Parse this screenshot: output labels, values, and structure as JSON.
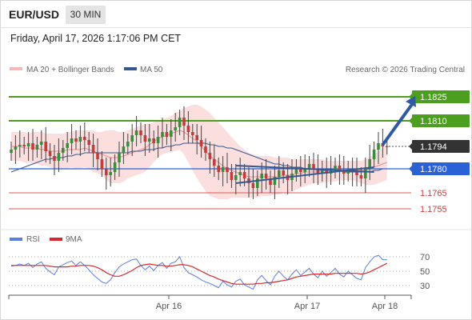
{
  "header": {
    "symbol": "EUR/USD",
    "timeframe": "30 MIN",
    "datetime": "Friday, April 17, 2026 1:17:06 PM CET"
  },
  "colors": {
    "bollinger_band": "#f7b8b8",
    "ma20": "#e8908e",
    "ma50": "#34588f",
    "resistance": "#4c9e1e",
    "support": "#e25757",
    "pivot": "#2a62d6",
    "candle_up": "#3a8d3a",
    "candle_down": "#c43b3b",
    "rsi": "#5b7ee0",
    "rsi_ma": "#d62a2a"
  },
  "chart_data": [
    {
      "type": "candlestick",
      "legend": [
        "MA 20 + Bollinger Bands",
        "MA 50"
      ],
      "watermark": "Research © 2026 Trading Central",
      "ylim": [
        1.1749,
        1.1832
      ],
      "levels": [
        {
          "value": 1.1825,
          "label": "1.1825",
          "kind": "resistance"
        },
        {
          "value": 1.181,
          "label": "1.1810",
          "kind": "resistance"
        },
        {
          "value": 1.1794,
          "label": "1.1794",
          "kind": "last"
        },
        {
          "value": 1.178,
          "label": "1.1780",
          "kind": "pivot"
        },
        {
          "value": 1.1765,
          "label": "1.1765",
          "kind": "support"
        },
        {
          "value": 1.1755,
          "label": "1.1755",
          "kind": "support"
        }
      ],
      "close": [
        1.1792,
        1.1794,
        1.1795,
        1.1794,
        1.1796,
        1.1792,
        1.1795,
        1.1797,
        1.1791,
        1.1788,
        1.1785,
        1.179,
        1.1793,
        1.1796,
        1.1799,
        1.1797,
        1.18,
        1.1798,
        1.1795,
        1.179,
        1.1786,
        1.178,
        1.1776,
        1.1778,
        1.1784,
        1.179,
        1.1794,
        1.1797,
        1.1801,
        1.1804,
        1.1801,
        1.1797,
        1.1799,
        1.1796,
        1.18,
        1.1803,
        1.18,
        1.1804,
        1.1806,
        1.1812,
        1.1807,
        1.1803,
        1.1801,
        1.1798,
        1.1794,
        1.179,
        1.1786,
        1.1782,
        1.1778,
        1.1781,
        1.1778,
        1.1773,
        1.1776,
        1.1778,
        1.1774,
        1.1771,
        1.1768,
        1.1774,
        1.1777,
        1.1774,
        1.177,
        1.1775,
        1.1779,
        1.1776,
        1.1773,
        1.1777,
        1.1781,
        1.1778,
        1.178,
        1.1783,
        1.178,
        1.1777,
        1.178,
        1.1777,
        1.1779,
        1.1782,
        1.1779,
        1.1777,
        1.178,
        1.1778,
        1.1776,
        1.1774,
        1.178,
        1.1786,
        1.1792,
        1.1796,
        1.1794,
        1.1794
      ],
      "ma20": [
        1.1794,
        1.1794,
        1.1794,
        1.1793,
        1.1793,
        1.1793,
        1.1793,
        1.1792,
        1.1792,
        1.1791,
        1.1791,
        1.1791,
        1.1791,
        1.1792,
        1.1792,
        1.1792,
        1.1792,
        1.1793,
        1.1792,
        1.1791,
        1.179,
        1.1789,
        1.1788,
        1.1787,
        1.1787,
        1.1787,
        1.1788,
        1.1789,
        1.179,
        1.1791,
        1.1792,
        1.1793,
        1.1795,
        1.1797,
        1.1799,
        1.18,
        1.1801,
        1.1802,
        1.1803,
        1.1804,
        1.1803,
        1.1801,
        1.1799,
        1.1797,
        1.1794,
        1.1791,
        1.1788,
        1.1786,
        1.1784,
        1.1782,
        1.178,
        1.1779,
        1.1778,
        1.1777,
        1.1776,
        1.1775,
        1.1775,
        1.1775,
        1.1775,
        1.1775,
        1.1775,
        1.1775,
        1.1775,
        1.1776,
        1.1776,
        1.1776,
        1.1777,
        1.1777,
        1.1778,
        1.1778,
        1.1778,
        1.1778,
        1.1779,
        1.1779,
        1.1779,
        1.1779,
        1.1779,
        1.1779,
        1.1779,
        1.1779,
        1.1779,
        1.1779,
        1.1779,
        1.178,
        1.1781,
        1.1782,
        1.1783,
        1.1784
      ],
      "bb_upper": [
        1.1803,
        1.1803,
        1.1803,
        1.1803,
        1.1802,
        1.1803,
        1.1803,
        1.1803,
        1.1802,
        1.1802,
        1.1802,
        1.1802,
        1.1802,
        1.1803,
        1.1803,
        1.1804,
        1.1804,
        1.1804,
        1.1804,
        1.1804,
        1.1803,
        1.1803,
        1.1804,
        1.1804,
        1.1804,
        1.1803,
        1.1803,
        1.1804,
        1.1805,
        1.1806,
        1.1807,
        1.1808,
        1.1808,
        1.1809,
        1.181,
        1.1811,
        1.1812,
        1.1813,
        1.1815,
        1.1816,
        1.1818,
        1.1819,
        1.182,
        1.182,
        1.1819,
        1.1817,
        1.1815,
        1.1812,
        1.1809,
        1.1806,
        1.1803,
        1.18,
        1.1797,
        1.1794,
        1.1792,
        1.179,
        1.1789,
        1.1788,
        1.1788,
        1.1788,
        1.1788,
        1.1787,
        1.1787,
        1.1787,
        1.1787,
        1.1786,
        1.1786,
        1.1786,
        1.1786,
        1.1786,
        1.1786,
        1.1786,
        1.1786,
        1.1785,
        1.1785,
        1.1785,
        1.1785,
        1.1785,
        1.1785,
        1.1785,
        1.1785,
        1.1785,
        1.1786,
        1.1787,
        1.1789,
        1.1791,
        1.1793,
        1.1795
      ],
      "bb_lower": [
        1.1785,
        1.1785,
        1.1785,
        1.1784,
        1.1784,
        1.1783,
        1.1783,
        1.1782,
        1.1782,
        1.1781,
        1.178,
        1.178,
        1.178,
        1.178,
        1.1781,
        1.178,
        1.178,
        1.1781,
        1.178,
        1.1778,
        1.1777,
        1.1776,
        1.1773,
        1.1771,
        1.1771,
        1.1771,
        1.1772,
        1.1774,
        1.1775,
        1.1776,
        1.1777,
        1.1778,
        1.1781,
        1.1784,
        1.1787,
        1.1789,
        1.179,
        1.1791,
        1.1791,
        1.1792,
        1.1789,
        1.1784,
        1.1779,
        1.1774,
        1.177,
        1.1766,
        1.1763,
        1.1762,
        1.1761,
        1.1761,
        1.1761,
        1.1762,
        1.1762,
        1.1762,
        1.1762,
        1.1762,
        1.1762,
        1.1762,
        1.1763,
        1.1763,
        1.1763,
        1.1764,
        1.1764,
        1.1765,
        1.1765,
        1.1766,
        1.1767,
        1.1768,
        1.1769,
        1.177,
        1.1771,
        1.1771,
        1.1771,
        1.1772,
        1.1772,
        1.1772,
        1.1773,
        1.1773,
        1.1773,
        1.1773,
        1.1772,
        1.1771,
        1.177,
        1.177,
        1.177,
        1.1771,
        1.1772,
        1.1773
      ],
      "ma50": [
        1.1778,
        1.1779,
        1.178,
        1.1781,
        1.1782,
        1.1783,
        1.1784,
        1.1785,
        1.1786,
        1.1786,
        1.1787,
        1.1787,
        1.1787,
        1.1788,
        1.1788,
        1.1789,
        1.1789,
        1.179,
        1.179,
        1.179,
        1.179,
        1.179,
        1.179,
        1.179,
        1.179,
        1.179,
        1.179,
        1.179,
        1.1791,
        1.1791,
        1.1791,
        1.1792,
        1.1792,
        1.1792,
        1.1793,
        1.1793,
        1.1794,
        1.1794,
        1.1795,
        1.1795,
        1.1796,
        1.1796,
        1.1796,
        1.1796,
        1.1796,
        1.1796,
        1.1795,
        1.1795,
        1.1794,
        1.1794,
        1.1793,
        1.1793,
        1.1792,
        1.1791,
        1.179,
        1.1789,
        1.1788,
        1.1787,
        1.1786,
        1.1785,
        1.1784,
        1.1783,
        1.1783,
        1.1782,
        1.1782,
        1.1781,
        1.1781,
        1.1781,
        1.178,
        1.178,
        1.178,
        1.178,
        1.1779,
        1.1779,
        1.1779,
        1.1779,
        1.1779,
        1.1778,
        1.1778,
        1.1778,
        1.1778,
        1.1778,
        1.1778,
        1.1778,
        1.1779,
        1.1779,
        1.178,
        1.178
      ],
      "trendlines": [
        {
          "from": [
            52,
            1.1771
          ],
          "to": [
            84,
            1.1781
          ],
          "kind": "support"
        },
        {
          "from": [
            52,
            1.1782
          ],
          "to": [
            84,
            1.1778
          ],
          "kind": "resistance"
        }
      ],
      "arrow": {
        "from": [
          86,
          1.1795
        ],
        "to": [
          90,
          1.1825
        ]
      }
    },
    {
      "type": "line",
      "legend": [
        "RSI",
        "9MA"
      ],
      "ylim": [
        20,
        80
      ],
      "yticks": [
        70,
        50,
        30
      ],
      "xticks": [
        "Apr 16",
        "Apr 17",
        "Apr 18"
      ],
      "rsi": [
        57,
        58,
        60,
        58,
        61,
        55,
        60,
        63,
        54,
        49,
        45,
        56,
        59,
        62,
        64,
        58,
        63,
        58,
        52,
        45,
        40,
        35,
        33,
        38,
        48,
        56,
        60,
        63,
        66,
        67,
        58,
        52,
        57,
        51,
        58,
        62,
        54,
        61,
        63,
        70,
        55,
        48,
        45,
        42,
        38,
        35,
        33,
        30,
        27,
        36,
        31,
        28,
        36,
        39,
        31,
        28,
        25,
        38,
        44,
        37,
        31,
        43,
        50,
        43,
        38,
        46,
        52,
        44,
        49,
        54,
        46,
        41,
        50,
        43,
        48,
        54,
        46,
        42,
        50,
        45,
        40,
        38,
        55,
        63,
        70,
        72,
        66,
        66
      ],
      "rsi_ma": [
        58,
        58,
        58,
        58,
        58,
        58,
        58,
        58,
        58,
        57,
        56,
        56,
        56,
        56,
        57,
        57,
        58,
        58,
        58,
        57,
        55,
        52,
        48,
        45,
        43,
        43,
        45,
        48,
        51,
        55,
        58,
        59,
        60,
        59,
        58,
        58,
        57,
        57,
        58,
        59,
        59,
        58,
        56,
        53,
        50,
        47,
        44,
        42,
        39,
        37,
        35,
        33,
        32,
        32,
        32,
        32,
        32,
        33,
        33,
        34,
        34,
        35,
        36,
        37,
        38,
        40,
        42,
        43,
        44,
        45,
        46,
        46,
        46,
        46,
        46,
        47,
        47,
        47,
        47,
        47,
        47,
        46,
        47,
        49,
        52,
        55,
        58,
        61
      ]
    }
  ]
}
